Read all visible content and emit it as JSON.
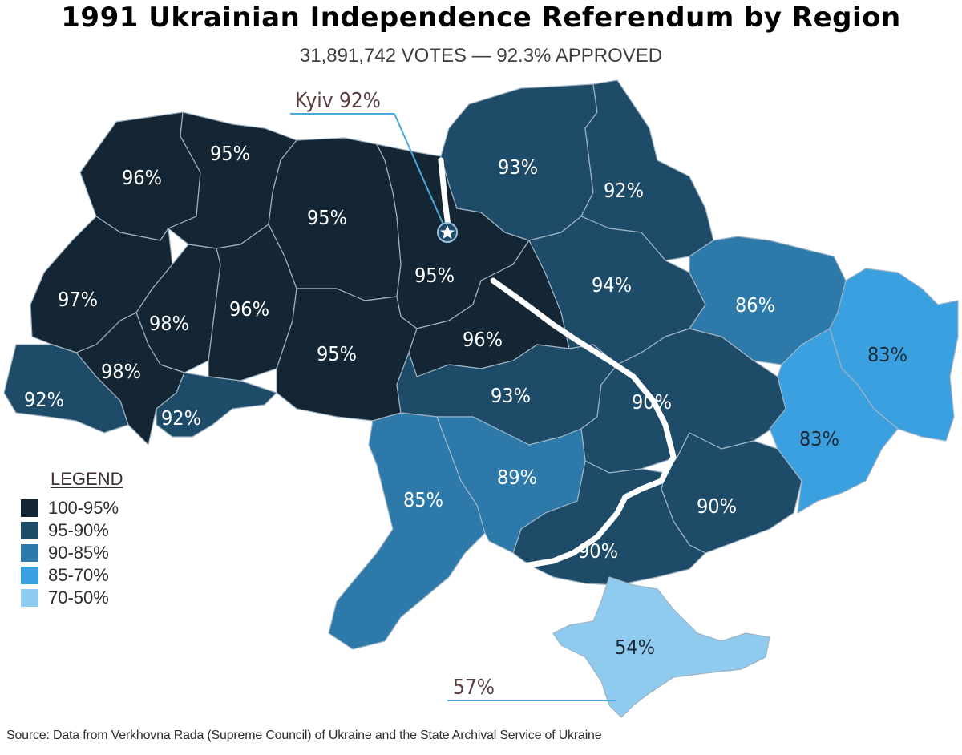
{
  "title": "1991 Ukrainian Independence Referendum by Region",
  "subtitle": "31,891,742 VOTES — 92.3% APPROVED",
  "colors": {
    "c100_95": "#142634",
    "c95_90": "#1e4b68",
    "c90_85": "#2d79a9",
    "c85_70": "#3aa0e0",
    "c70_50": "#8ecbef",
    "border": "#9fb3c4",
    "callout_line": "#4aa8dc"
  },
  "callouts": {
    "kyiv": "Kyiv 92%",
    "sevastopol": "57%"
  },
  "regions": [
    {
      "id": "volyn",
      "label": "96%",
      "value": 96,
      "band": "100-95%"
    },
    {
      "id": "rivne",
      "label": "95%",
      "value": 95,
      "band": "100-95%"
    },
    {
      "id": "zhytomyr",
      "label": "95%",
      "value": 95,
      "band": "100-95%"
    },
    {
      "id": "kyiv-oblast",
      "label": "95%",
      "value": 95,
      "band": "100-95%"
    },
    {
      "id": "lviv",
      "label": "97%",
      "value": 97,
      "band": "100-95%"
    },
    {
      "id": "ternopil",
      "label": "98%",
      "value": 98,
      "band": "100-95%"
    },
    {
      "id": "khmelnytskyi",
      "label": "96%",
      "value": 96,
      "band": "100-95%"
    },
    {
      "id": "ivano-frankivsk",
      "label": "98%",
      "value": 98,
      "band": "100-95%"
    },
    {
      "id": "vinnytsia",
      "label": "95%",
      "value": 95,
      "band": "100-95%"
    },
    {
      "id": "cherkasy",
      "label": "96%",
      "value": 96,
      "band": "100-95%"
    },
    {
      "id": "zakarpattia",
      "label": "92%",
      "value": 92,
      "band": "95-90%"
    },
    {
      "id": "chernivtsi",
      "label": "92%",
      "value": 92,
      "band": "95-90%"
    },
    {
      "id": "chernihiv",
      "label": "93%",
      "value": 93,
      "band": "95-90%"
    },
    {
      "id": "sumy",
      "label": "92%",
      "value": 92,
      "band": "95-90%"
    },
    {
      "id": "poltava",
      "label": "94%",
      "value": 94,
      "band": "95-90%"
    },
    {
      "id": "kirovohrad",
      "label": "93%",
      "value": 93,
      "band": "95-90%"
    },
    {
      "id": "dnipropetrovsk",
      "label": "90%",
      "value": 90,
      "band": "95-90%"
    },
    {
      "id": "zaporizhzhia",
      "label": "90%",
      "value": 90,
      "band": "95-90%"
    },
    {
      "id": "kherson",
      "label": "90%",
      "value": 90,
      "band": "95-90%"
    },
    {
      "id": "kharkiv",
      "label": "86%",
      "value": 86,
      "band": "90-85%"
    },
    {
      "id": "odesa",
      "label": "85%",
      "value": 85,
      "band": "90-85%"
    },
    {
      "id": "mykolaiv",
      "label": "89%",
      "value": 89,
      "band": "90-85%"
    },
    {
      "id": "luhansk",
      "label": "83%",
      "value": 83,
      "band": "85-70%"
    },
    {
      "id": "donetsk",
      "label": "83%",
      "value": 83,
      "band": "85-70%"
    },
    {
      "id": "crimea",
      "label": "54%",
      "value": 54,
      "band": "70-50%"
    }
  ],
  "legend": {
    "title": "LEGEND",
    "items": [
      {
        "label": "100-95%",
        "color": "#142634"
      },
      {
        "label": "95-90%",
        "color": "#1e4b68"
      },
      {
        "label": "90-85%",
        "color": "#2d79a9"
      },
      {
        "label": "85-70%",
        "color": "#3aa0e0"
      },
      {
        "label": "70-50%",
        "color": "#8ecbef"
      }
    ]
  },
  "source": "Source: Data from Verkhovna Rada (Supreme Council) of Ukraine and the State Archival Service of Ukraine"
}
